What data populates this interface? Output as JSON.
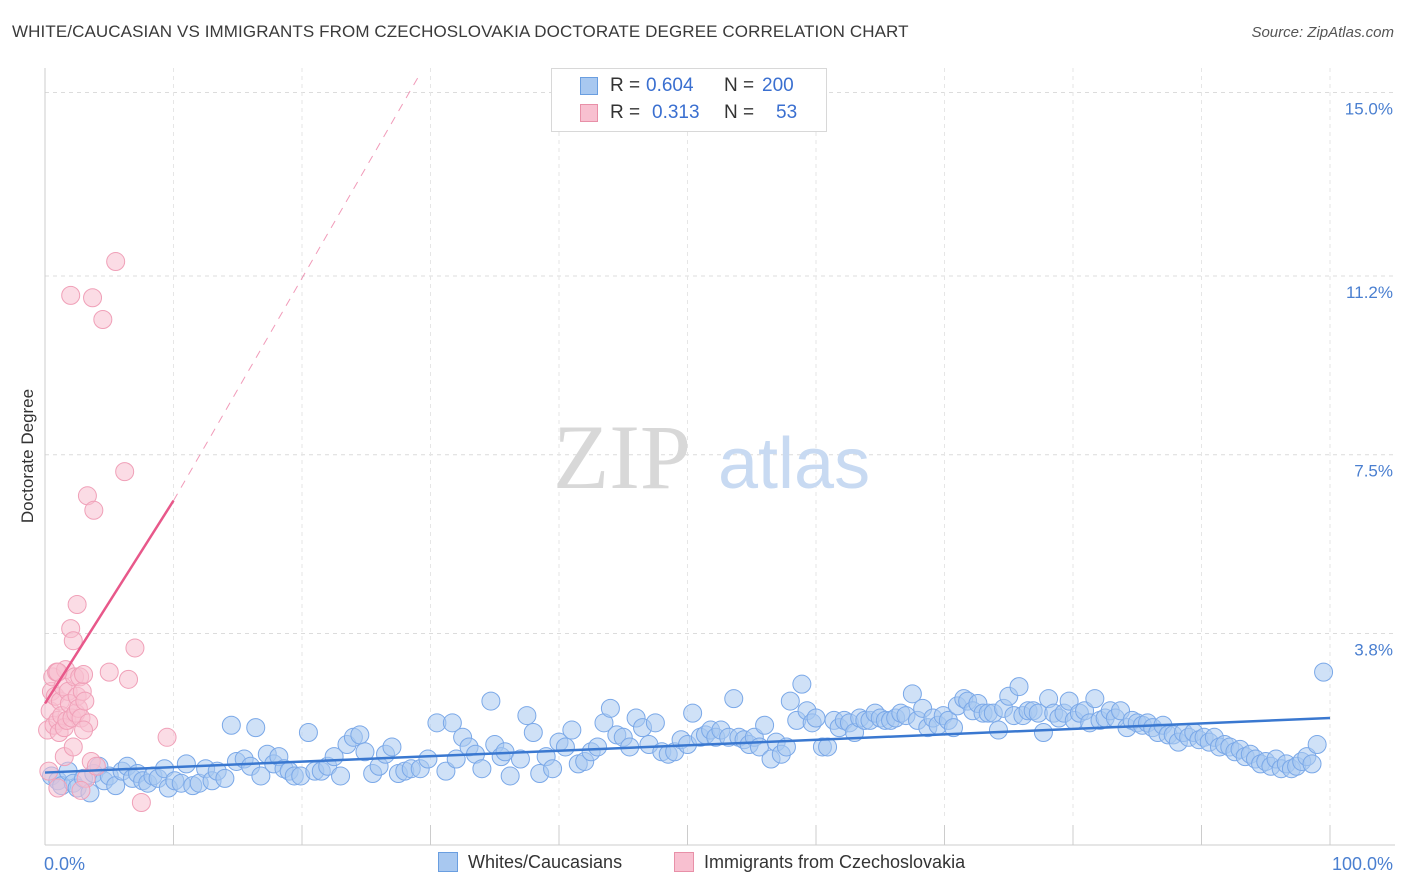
{
  "title": "WHITE/CAUCASIAN VS IMMIGRANTS FROM CZECHOSLOVAKIA DOCTORATE DEGREE CORRELATION CHART",
  "source": "Source: ZipAtlas.com",
  "watermark": {
    "zip": "ZIP",
    "atlas": "atlas"
  },
  "legend": {
    "rows": [
      {
        "r_label": "R =",
        "r_value": "0.604",
        "n_label": "N =",
        "n_value": "200",
        "color": "#a8c8f0",
        "border": "#6a9ee0"
      },
      {
        "r_label": "R =",
        "r_value": "0.313",
        "n_label": "N =",
        "n_value": "53",
        "color": "#f8c0d0",
        "border": "#e890a8"
      }
    ]
  },
  "bottom_legend": {
    "items": [
      {
        "label": "Whites/Caucasians",
        "color": "#a8c8f0",
        "border": "#6a9ee0"
      },
      {
        "label": "Immigrants from Czechoslovakia",
        "color": "#f8c0d0",
        "border": "#e890a8"
      }
    ]
  },
  "chart_data": {
    "type": "scatter",
    "title": "WHITE/CAUCASIAN VS IMMIGRANTS FROM CZECHOSLOVAKIA DOCTORATE DEGREE CORRELATION CHART",
    "xlabel": "",
    "ylabel": "Doctorate Degree",
    "xlim": [
      0,
      100
    ],
    "ylim": [
      0,
      15.3
    ],
    "x_tick_labels": [
      "0.0%",
      "100.0%"
    ],
    "y_ticks": [
      3.8,
      7.5,
      11.2,
      15.0
    ],
    "y_tick_labels": [
      "3.8%",
      "7.5%",
      "11.2%",
      "15.0%"
    ],
    "grid": true,
    "legend_position": "top-center",
    "series": [
      {
        "name": "Whites/Caucasians",
        "color": "#a8c8f0",
        "stroke": "#7aa8e8",
        "trendline": {
          "x": [
            0,
            100
          ],
          "y": [
            0.92,
            2.05
          ],
          "color": "#3a78d0"
        },
        "points": [
          [
            0.5,
            0.85
          ],
          [
            1,
            0.75
          ],
          [
            1.3,
            0.65
          ],
          [
            1.8,
            0.95
          ],
          [
            2.2,
            0.7
          ],
          [
            2.5,
            0.6
          ],
          [
            3.0,
            0.8
          ],
          [
            3.5,
            0.5
          ],
          [
            3.8,
            0.9
          ],
          [
            4.2,
            1.05
          ],
          [
            4.6,
            0.75
          ],
          [
            5.0,
            0.85
          ],
          [
            5.5,
            0.65
          ],
          [
            6.0,
            0.95
          ],
          [
            6.4,
            1.05
          ],
          [
            6.8,
            0.8
          ],
          [
            7.2,
            0.9
          ],
          [
            7.6,
            0.75
          ],
          [
            8.0,
            0.7
          ],
          [
            8.4,
            0.85
          ],
          [
            8.8,
            0.8
          ],
          [
            9.3,
            1.0
          ],
          [
            9.6,
            0.6
          ],
          [
            10.1,
            0.75
          ],
          [
            10.6,
            0.7
          ],
          [
            11.0,
            1.1
          ],
          [
            11.5,
            0.65
          ],
          [
            12.0,
            0.7
          ],
          [
            12.5,
            1.0
          ],
          [
            13.0,
            0.75
          ],
          [
            13.4,
            0.95
          ],
          [
            14.0,
            0.8
          ],
          [
            14.5,
            1.9
          ],
          [
            14.9,
            1.15
          ],
          [
            15.5,
            1.2
          ],
          [
            16.0,
            1.05
          ],
          [
            16.4,
            1.85
          ],
          [
            16.8,
            0.85
          ],
          [
            17.3,
            1.3
          ],
          [
            17.8,
            1.1
          ],
          [
            18.2,
            1.25
          ],
          [
            18.6,
            1.0
          ],
          [
            19.0,
            0.95
          ],
          [
            19.4,
            0.85
          ],
          [
            19.9,
            0.85
          ],
          [
            20.5,
            1.75
          ],
          [
            21.0,
            0.95
          ],
          [
            21.5,
            0.95
          ],
          [
            22.0,
            1.05
          ],
          [
            22.5,
            1.25
          ],
          [
            23.0,
            0.85
          ],
          [
            23.5,
            1.5
          ],
          [
            24.0,
            1.65
          ],
          [
            24.5,
            1.7
          ],
          [
            24.9,
            1.35
          ],
          [
            25.5,
            0.9
          ],
          [
            26.0,
            1.05
          ],
          [
            26.5,
            1.3
          ],
          [
            27.0,
            1.45
          ],
          [
            27.5,
            0.9
          ],
          [
            28.0,
            0.95
          ],
          [
            28.5,
            1.0
          ],
          [
            29.2,
            1.0
          ],
          [
            29.8,
            1.2
          ],
          [
            30.5,
            1.95
          ],
          [
            31.2,
            0.95
          ],
          [
            31.7,
            1.95
          ],
          [
            32.0,
            1.2
          ],
          [
            32.5,
            1.65
          ],
          [
            33.0,
            1.45
          ],
          [
            33.5,
            1.3
          ],
          [
            34.0,
            1.0
          ],
          [
            34.7,
            2.4
          ],
          [
            35.0,
            1.5
          ],
          [
            35.5,
            1.25
          ],
          [
            35.8,
            1.35
          ],
          [
            36.2,
            0.85
          ],
          [
            37.0,
            1.2
          ],
          [
            37.5,
            2.1
          ],
          [
            38.0,
            1.75
          ],
          [
            38.5,
            0.9
          ],
          [
            39.0,
            1.25
          ],
          [
            39.5,
            1.0
          ],
          [
            40.0,
            1.55
          ],
          [
            40.5,
            1.45
          ],
          [
            41.0,
            1.8
          ],
          [
            41.5,
            1.1
          ],
          [
            42.0,
            1.15
          ],
          [
            42.5,
            1.35
          ],
          [
            43.0,
            1.45
          ],
          [
            43.5,
            1.95
          ],
          [
            44.0,
            2.25
          ],
          [
            44.5,
            1.7
          ],
          [
            45.0,
            1.65
          ],
          [
            45.5,
            1.45
          ],
          [
            46.0,
            2.05
          ],
          [
            46.5,
            1.85
          ],
          [
            47.0,
            1.5
          ],
          [
            47.5,
            1.95
          ],
          [
            48.0,
            1.35
          ],
          [
            48.5,
            1.3
          ],
          [
            49.0,
            1.35
          ],
          [
            49.5,
            1.6
          ],
          [
            50.0,
            1.5
          ],
          [
            50.4,
            2.15
          ],
          [
            51.0,
            1.65
          ],
          [
            51.4,
            1.7
          ],
          [
            51.8,
            1.8
          ],
          [
            52.2,
            1.65
          ],
          [
            52.6,
            1.8
          ],
          [
            53.2,
            1.65
          ],
          [
            53.6,
            2.45
          ],
          [
            54.0,
            1.65
          ],
          [
            54.4,
            1.6
          ],
          [
            54.8,
            1.5
          ],
          [
            55.2,
            1.65
          ],
          [
            55.6,
            1.45
          ],
          [
            56.0,
            1.9
          ],
          [
            56.5,
            1.2
          ],
          [
            56.9,
            1.55
          ],
          [
            57.3,
            1.3
          ],
          [
            57.7,
            1.45
          ],
          [
            58.0,
            2.4
          ],
          [
            58.5,
            2.0
          ],
          [
            58.9,
            2.75
          ],
          [
            59.3,
            2.2
          ],
          [
            59.7,
            1.95
          ],
          [
            60.0,
            2.05
          ],
          [
            60.5,
            1.45
          ],
          [
            60.9,
            1.45
          ],
          [
            61.4,
            2.0
          ],
          [
            61.8,
            1.85
          ],
          [
            62.2,
            2.0
          ],
          [
            62.6,
            1.95
          ],
          [
            63.0,
            1.75
          ],
          [
            63.4,
            2.05
          ],
          [
            63.8,
            2.0
          ],
          [
            64.2,
            2.0
          ],
          [
            64.6,
            2.15
          ],
          [
            65.0,
            2.05
          ],
          [
            65.4,
            2.0
          ],
          [
            65.8,
            2.0
          ],
          [
            66.2,
            2.05
          ],
          [
            66.6,
            2.15
          ],
          [
            67.0,
            2.1
          ],
          [
            67.5,
            2.55
          ],
          [
            67.9,
            2.0
          ],
          [
            68.3,
            2.25
          ],
          [
            68.7,
            1.85
          ],
          [
            69.1,
            2.05
          ],
          [
            69.5,
            1.9
          ],
          [
            69.9,
            2.1
          ],
          [
            70.3,
            2.0
          ],
          [
            70.7,
            1.85
          ],
          [
            71.0,
            2.3
          ],
          [
            71.5,
            2.45
          ],
          [
            71.8,
            2.4
          ],
          [
            72.2,
            2.2
          ],
          [
            72.6,
            2.35
          ],
          [
            73.0,
            2.15
          ],
          [
            73.4,
            2.15
          ],
          [
            73.8,
            2.15
          ],
          [
            74.2,
            1.8
          ],
          [
            74.6,
            2.25
          ],
          [
            75.0,
            2.5
          ],
          [
            75.4,
            2.1
          ],
          [
            75.8,
            2.7
          ],
          [
            76.1,
            2.1
          ],
          [
            76.5,
            2.2
          ],
          [
            76.9,
            2.2
          ],
          [
            77.3,
            2.15
          ],
          [
            77.7,
            1.75
          ],
          [
            78.1,
            2.45
          ],
          [
            78.5,
            2.15
          ],
          [
            78.9,
            2.05
          ],
          [
            79.3,
            2.15
          ],
          [
            79.7,
            2.4
          ],
          [
            80.1,
            2.0
          ],
          [
            80.5,
            2.15
          ],
          [
            80.9,
            2.2
          ],
          [
            81.3,
            1.95
          ],
          [
            81.7,
            2.45
          ],
          [
            82.1,
            2.0
          ],
          [
            82.5,
            2.05
          ],
          [
            82.9,
            2.2
          ],
          [
            83.3,
            2.05
          ],
          [
            83.7,
            2.2
          ],
          [
            84.2,
            1.85
          ],
          [
            84.6,
            2.0
          ],
          [
            85.0,
            1.95
          ],
          [
            85.4,
            1.9
          ],
          [
            85.8,
            1.95
          ],
          [
            86.2,
            1.85
          ],
          [
            86.6,
            1.75
          ],
          [
            87.0,
            1.9
          ],
          [
            87.4,
            1.7
          ],
          [
            87.8,
            1.7
          ],
          [
            88.2,
            1.55
          ],
          [
            88.6,
            1.75
          ],
          [
            89.0,
            1.65
          ],
          [
            89.4,
            1.75
          ],
          [
            89.8,
            1.6
          ],
          [
            90.2,
            1.65
          ],
          [
            90.6,
            1.55
          ],
          [
            91.0,
            1.65
          ],
          [
            91.4,
            1.45
          ],
          [
            91.8,
            1.5
          ],
          [
            92.2,
            1.45
          ],
          [
            92.6,
            1.35
          ],
          [
            93.0,
            1.4
          ],
          [
            93.4,
            1.25
          ],
          [
            93.8,
            1.3
          ],
          [
            94.2,
            1.2
          ],
          [
            94.6,
            1.1
          ],
          [
            95.0,
            1.15
          ],
          [
            95.4,
            1.05
          ],
          [
            95.8,
            1.2
          ],
          [
            96.2,
            1.0
          ],
          [
            96.6,
            1.1
          ],
          [
            97.0,
            1.0
          ],
          [
            97.4,
            1.05
          ],
          [
            97.8,
            1.15
          ],
          [
            98.2,
            1.25
          ],
          [
            98.6,
            1.1
          ],
          [
            99.0,
            1.5
          ],
          [
            99.5,
            3.0
          ]
        ]
      },
      {
        "name": "Immigrants from Czechoslovakia",
        "color": "#f8c0d0",
        "stroke": "#f0a0b8",
        "trendline": {
          "x": [
            0,
            10
          ],
          "y": [
            2.35,
            6.55
          ],
          "color": "#e8588a",
          "dashed_x": [
            10,
            29
          ],
          "dashed_y": [
            6.55,
            15.3
          ]
        },
        "points": [
          [
            0.2,
            1.8
          ],
          [
            0.4,
            2.2
          ],
          [
            0.5,
            2.6
          ],
          [
            0.6,
            2.9
          ],
          [
            0.7,
            1.9
          ],
          [
            0.8,
            2.5
          ],
          [
            0.9,
            3.0
          ],
          [
            1.0,
            2.0
          ],
          [
            1.1,
            1.75
          ],
          [
            1.2,
            2.4
          ],
          [
            1.3,
            2.1
          ],
          [
            1.4,
            2.7
          ],
          [
            1.5,
            1.85
          ],
          [
            1.6,
            3.05
          ],
          [
            1.7,
            2.0
          ],
          [
            1.8,
            2.6
          ],
          [
            1.9,
            2.35
          ],
          [
            2.0,
            3.9
          ],
          [
            2.1,
            2.05
          ],
          [
            2.2,
            3.65
          ],
          [
            2.3,
            2.9
          ],
          [
            2.4,
            2.15
          ],
          [
            2.5,
            2.5
          ],
          [
            2.6,
            2.25
          ],
          [
            2.7,
            2.9
          ],
          [
            2.8,
            2.05
          ],
          [
            2.9,
            2.6
          ],
          [
            3.0,
            2.95
          ],
          [
            3.1,
            2.4
          ],
          [
            3.2,
            0.8
          ],
          [
            3.3,
            6.65
          ],
          [
            3.4,
            1.95
          ],
          [
            3.6,
            1.15
          ],
          [
            3.8,
            6.35
          ],
          [
            4.0,
            1.05
          ],
          [
            2.0,
            10.8
          ],
          [
            3.7,
            10.75
          ],
          [
            5.5,
            11.5
          ],
          [
            6.2,
            7.15
          ],
          [
            7.0,
            3.5
          ],
          [
            6.5,
            2.85
          ],
          [
            4.5,
            10.3
          ],
          [
            2.8,
            0.55
          ],
          [
            1.5,
            1.25
          ],
          [
            2.5,
            4.4
          ],
          [
            1.0,
            0.6
          ],
          [
            2.2,
            1.45
          ],
          [
            0.3,
            0.95
          ],
          [
            5.0,
            3.0
          ],
          [
            9.5,
            1.65
          ],
          [
            7.5,
            0.3
          ],
          [
            1.0,
            3.0
          ],
          [
            3.0,
            1.8
          ]
        ]
      }
    ]
  }
}
